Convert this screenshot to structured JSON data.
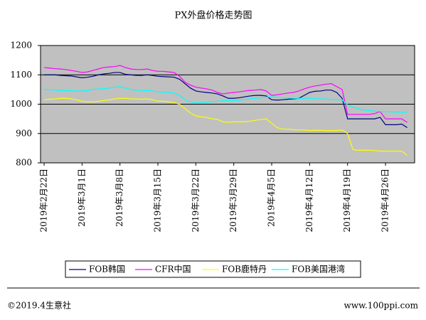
{
  "chart_data": {
    "type": "line",
    "title": "PX外盘价格走势图",
    "categories": [
      "2019年2月22日",
      null,
      null,
      null,
      null,
      null,
      null,
      "2019年3月1日",
      null,
      null,
      null,
      null,
      null,
      null,
      "2019年3月8日",
      null,
      null,
      null,
      null,
      null,
      null,
      "2019年3月15日",
      null,
      null,
      null,
      null,
      null,
      null,
      "2019年3月22日",
      null,
      null,
      null,
      null,
      null,
      null,
      "2019年3月29日",
      null,
      null,
      null,
      null,
      null,
      null,
      "2019年4月5日",
      null,
      null,
      null,
      null,
      null,
      null,
      "2019年4月12日",
      null,
      null,
      null,
      null,
      null,
      null,
      "2019年4月19日",
      null,
      null,
      null,
      null,
      null,
      null,
      "2019年4月26日",
      null,
      null,
      null,
      null
    ],
    "series": [
      {
        "name": "FOB韩国",
        "color": "#000080",
        "values": [
          1100,
          1100,
          1100,
          1098,
          1097,
          1096,
          1093,
          1090,
          1092,
          1095,
          1100,
          1103,
          1105,
          1108,
          1108,
          1102,
          1100,
          1098,
          1098,
          1100,
          1098,
          1095,
          1094,
          1093,
          1092,
          1085,
          1070,
          1055,
          1045,
          1042,
          1040,
          1038,
          1035,
          1028,
          1020,
          1020,
          1022,
          1025,
          1028,
          1030,
          1030,
          1028,
          1015,
          1014,
          1015,
          1017,
          1018,
          1020,
          1030,
          1040,
          1044,
          1045,
          1048,
          1048,
          1040,
          1020,
          950,
          950,
          950,
          950,
          950,
          950,
          955,
          930,
          930,
          930,
          932,
          920
        ]
      },
      {
        "name": "CFR中国",
        "color": "#ff00ff",
        "values": [
          1125,
          1123,
          1121,
          1120,
          1118,
          1115,
          1112,
          1108,
          1110,
          1115,
          1120,
          1125,
          1127,
          1128,
          1132,
          1125,
          1120,
          1118,
          1118,
          1120,
          1115,
          1112,
          1112,
          1110,
          1108,
          1095,
          1075,
          1065,
          1058,
          1055,
          1052,
          1048,
          1040,
          1035,
          1038,
          1040,
          1042,
          1045,
          1047,
          1048,
          1050,
          1045,
          1030,
          1032,
          1035,
          1038,
          1040,
          1045,
          1052,
          1058,
          1062,
          1065,
          1068,
          1070,
          1060,
          1050,
          965,
          965,
          965,
          965,
          965,
          968,
          975,
          950,
          950,
          950,
          950,
          938
        ]
      },
      {
        "name": "FOB鹿特丹",
        "color": "#ffff00",
        "values": [
          1015,
          1017,
          1018,
          1020,
          1020,
          1018,
          1015,
          1010,
          1008,
          1008,
          1010,
          1012,
          1015,
          1018,
          1020,
          1020,
          1018,
          1018,
          1017,
          1018,
          1015,
          1010,
          1010,
          1008,
          1005,
          1000,
          985,
          970,
          960,
          957,
          955,
          950,
          948,
          940,
          938,
          940,
          940,
          940,
          942,
          945,
          948,
          950,
          935,
          920,
          915,
          915,
          913,
          912,
          912,
          910,
          911,
          911,
          910,
          910,
          910,
          912,
          900,
          845,
          843,
          843,
          843,
          842,
          840,
          840,
          840,
          840,
          840,
          825
        ]
      },
      {
        "name": "FOB美国港湾",
        "color": "#00ffff",
        "values": [
          1050,
          1050,
          1048,
          1047,
          1046,
          1046,
          1045,
          1045,
          1047,
          1050,
          1052,
          1053,
          1055,
          1057,
          1060,
          1055,
          1050,
          1048,
          1045,
          1047,
          1045,
          1042,
          1041,
          1040,
          1038,
          1030,
          1015,
          1008,
          1005,
          1006,
          1007,
          1008,
          1010,
          1012,
          1012,
          1012,
          1014,
          1016,
          1018,
          1020,
          1022,
          1024,
          1025,
          1023,
          1022,
          1021,
          1020,
          1020,
          1020,
          1020,
          1019,
          1018,
          1018,
          1016,
          1015,
          1015,
          998,
          990,
          985,
          980,
          978,
          976,
          975,
          975,
          974,
          973,
          973,
          972
        ]
      }
    ],
    "ylim": [
      800,
      1200
    ],
    "yticks": [
      800,
      900,
      1000,
      1100,
      1200
    ],
    "grid": true,
    "plot_background": "#c0c0c0",
    "legend": "bottom",
    "footer_left": "©2019.4生意社",
    "footer_right": "www.100ppi.com"
  }
}
